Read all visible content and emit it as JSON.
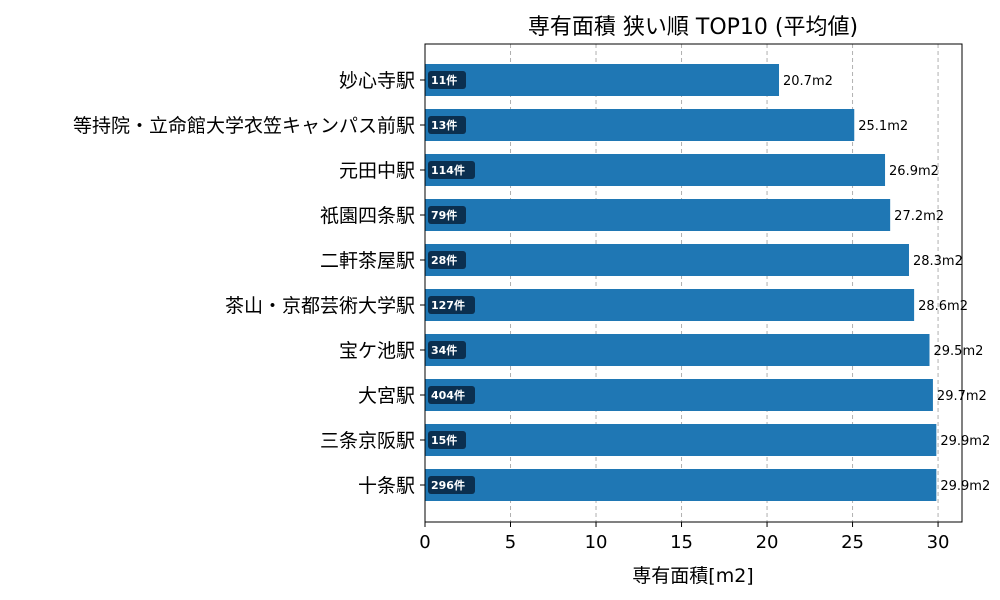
{
  "chart_data": {
    "type": "bar",
    "orientation": "horizontal",
    "title": "専有面積 狭い順 TOP10 (平均値)",
    "xlabel": "専有面積[m2]",
    "ylabel": "",
    "xlim": [
      0,
      31.4
    ],
    "xticks": [
      0,
      5,
      10,
      15,
      20,
      25,
      30
    ],
    "grid": "x-dashed",
    "bar_color": "#1f77b4",
    "badge_color": "#0b2f4f",
    "categories": [
      "妙心寺駅",
      "等持院・立命館大学衣笠キャンパス前駅",
      "元田中駅",
      "祇園四条駅",
      "二軒茶屋駅",
      "茶山・京都芸術大学駅",
      "宝ケ池駅",
      "大宮駅",
      "三条京阪駅",
      "十条駅"
    ],
    "values": [
      20.7,
      25.1,
      26.9,
      27.2,
      28.3,
      28.6,
      29.5,
      29.7,
      29.9,
      29.9
    ],
    "value_labels": [
      "20.7m2",
      "25.1m2",
      "26.9m2",
      "27.2m2",
      "28.3m2",
      "28.6m2",
      "29.5m2",
      "29.7m2",
      "29.9m2",
      "29.9m2"
    ],
    "counts": [
      "11件",
      "13件",
      "114件",
      "79件",
      "28件",
      "127件",
      "34件",
      "404件",
      "15件",
      "296件"
    ]
  }
}
